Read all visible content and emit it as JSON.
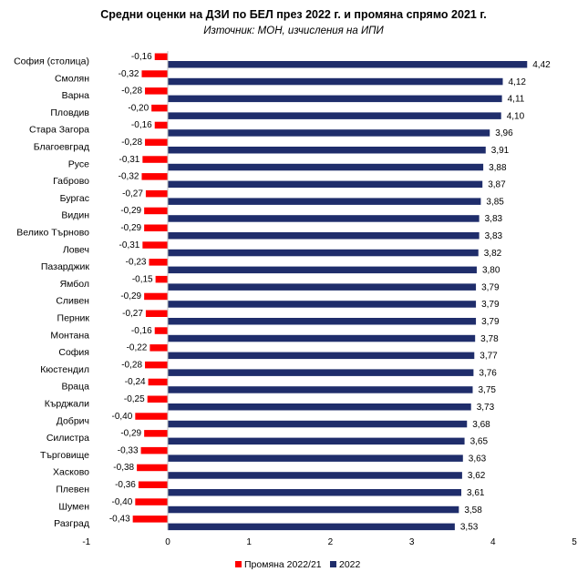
{
  "chart_data": {
    "type": "bar",
    "orientation": "horizontal",
    "title": "Средни оценки на ДЗИ по БЕЛ през 2022 г. и промяна спрямо 2021 г.",
    "subtitle": "Източник: МОН, изчисления на ИПИ",
    "categories": [
      "София (столица)",
      "Смолян",
      "Варна",
      "Пловдив",
      "Стара Загора",
      "Благоевград",
      "Русе",
      "Габрово",
      "Бургас",
      "Видин",
      "Велико Търново",
      "Ловеч",
      "Пазарджик",
      "Ямбол",
      "Сливен",
      "Перник",
      "Монтана",
      "София",
      "Кюстендил",
      "Враца",
      "Кърджали",
      "Добрич",
      "Силистра",
      "Търговище",
      "Хасково",
      "Плевен",
      "Шумен",
      "Разград"
    ],
    "series": [
      {
        "name": "Промяна 2022/21",
        "color": "#ff0000",
        "values": [
          -0.16,
          -0.32,
          -0.28,
          -0.2,
          -0.16,
          -0.28,
          -0.31,
          -0.32,
          -0.27,
          -0.29,
          -0.29,
          -0.31,
          -0.23,
          -0.15,
          -0.29,
          -0.27,
          -0.16,
          -0.22,
          -0.28,
          -0.24,
          -0.25,
          -0.4,
          -0.29,
          -0.33,
          -0.38,
          -0.36,
          -0.4,
          -0.43
        ],
        "labels": [
          "-0,16",
          "-0,32",
          "-0,28",
          "-0,20",
          "-0,16",
          "-0,28",
          "-0,31",
          "-0,32",
          "-0,27",
          "-0,29",
          "-0,29",
          "-0,31",
          "-0,23",
          "-0,15",
          "-0,29",
          "-0,27",
          "-0,16",
          "-0,22",
          "-0,28",
          "-0,24",
          "-0,25",
          "-0,40",
          "-0,29",
          "-0,33",
          "-0,38",
          "-0,36",
          "-0,40",
          "-0,43"
        ]
      },
      {
        "name": "2022",
        "color": "#1f2d6b",
        "values": [
          4.42,
          4.12,
          4.11,
          4.1,
          3.96,
          3.91,
          3.88,
          3.87,
          3.85,
          3.83,
          3.83,
          3.82,
          3.8,
          3.79,
          3.79,
          3.79,
          3.78,
          3.77,
          3.76,
          3.75,
          3.73,
          3.68,
          3.65,
          3.63,
          3.62,
          3.61,
          3.58,
          3.53
        ],
        "labels": [
          "4,42",
          "4,12",
          "4,11",
          "4,10",
          "3,96",
          "3,91",
          "3,88",
          "3,87",
          "3,85",
          "3,83",
          "3,83",
          "3,82",
          "3,80",
          "3,79",
          "3,79",
          "3,79",
          "3,78",
          "3,77",
          "3,76",
          "3,75",
          "3,73",
          "3,68",
          "3,65",
          "3,63",
          "3,62",
          "3,61",
          "3,58",
          "3,53"
        ]
      }
    ],
    "xlim": [
      -1,
      5
    ],
    "xticks": [
      -1,
      0,
      1,
      2,
      3,
      4,
      5
    ],
    "xtick_labels": [
      "-1",
      "0",
      "1",
      "2",
      "3",
      "4",
      "5"
    ],
    "grid": false,
    "legend_position": "bottom"
  }
}
